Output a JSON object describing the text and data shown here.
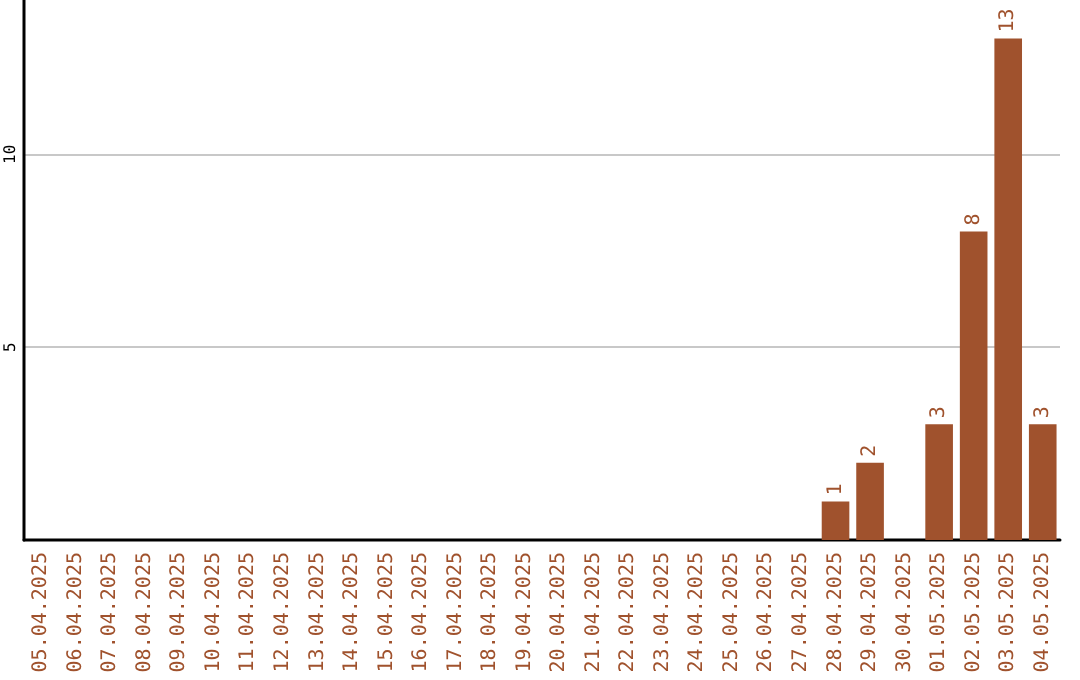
{
  "chart_data": {
    "type": "bar",
    "categories": [
      "05.04.2025",
      "06.04.2025",
      "07.04.2025",
      "08.04.2025",
      "09.04.2025",
      "10.04.2025",
      "11.04.2025",
      "12.04.2025",
      "13.04.2025",
      "14.04.2025",
      "15.04.2025",
      "16.04.2025",
      "17.04.2025",
      "18.04.2025",
      "19.04.2025",
      "20.04.2025",
      "21.04.2025",
      "22.04.2025",
      "23.04.2025",
      "24.04.2025",
      "25.04.2025",
      "26.04.2025",
      "27.04.2025",
      "28.04.2025",
      "29.04.2025",
      "30.04.2025",
      "01.05.2025",
      "02.05.2025",
      "03.05.2025",
      "04.05.2025"
    ],
    "values": [
      0,
      0,
      0,
      0,
      0,
      0,
      0,
      0,
      0,
      0,
      0,
      0,
      0,
      0,
      0,
      0,
      0,
      0,
      0,
      0,
      0,
      0,
      0,
      1,
      2,
      0,
      3,
      8,
      13,
      3
    ],
    "value_labels": [
      null,
      null,
      null,
      null,
      null,
      null,
      null,
      null,
      null,
      null,
      null,
      null,
      null,
      null,
      null,
      null,
      null,
      null,
      null,
      null,
      null,
      null,
      null,
      "1",
      "2",
      null,
      "3",
      "8",
      "13",
      "3"
    ],
    "color": "#a0522d",
    "ylim": [
      0,
      14
    ],
    "yticks": [
      5,
      10
    ],
    "grid": "y"
  }
}
